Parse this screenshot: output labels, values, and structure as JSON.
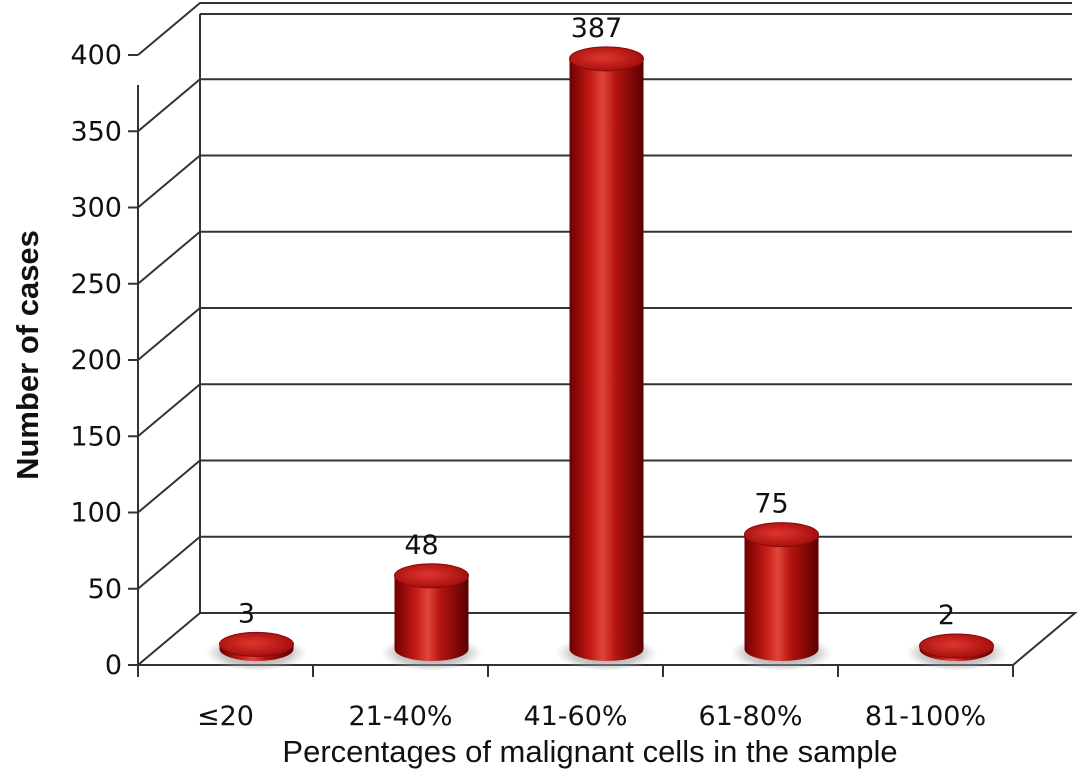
{
  "chart_data": {
    "type": "bar",
    "style": "3d-cylinder",
    "categories": [
      "≤20",
      "21-40%",
      "41-60%",
      "61-80%",
      "81-100%"
    ],
    "values": [
      3,
      48,
      387,
      75,
      2
    ],
    "data_labels": [
      "3",
      "48",
      "387",
      "75",
      "2"
    ],
    "title": "",
    "xlabel": "Percentages of malignant cells in the sample",
    "ylabel": "Number of cases",
    "ylim": [
      0,
      400
    ],
    "yticks": [
      0,
      50,
      100,
      150,
      200,
      250,
      300,
      350,
      400
    ],
    "grid": true,
    "legend": "none",
    "colors": {
      "bar": "#b01010",
      "bar_light": "#e84a3a",
      "bar_dark": "#5a0000",
      "grid": "#333333"
    }
  }
}
